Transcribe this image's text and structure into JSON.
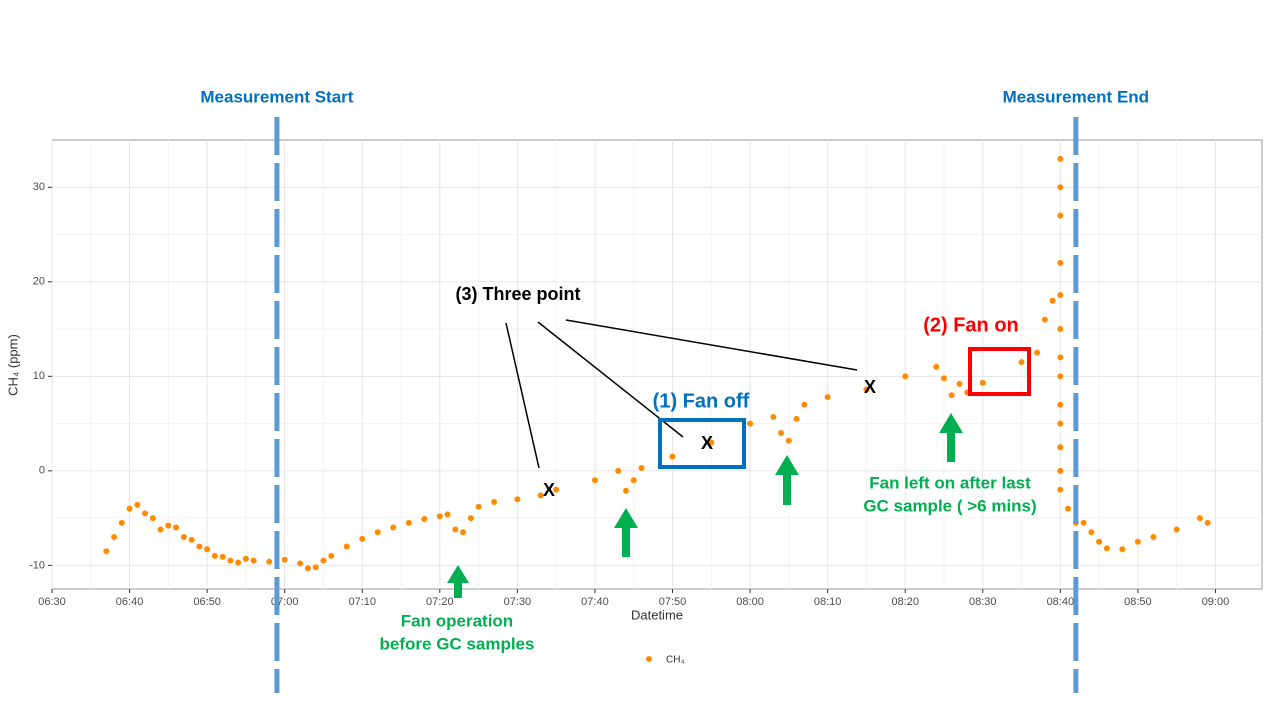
{
  "chart_data": {
    "type": "scatter",
    "x_label": "Datetime",
    "y_label": "CH₄ (ppm)",
    "xlim": [
      "06:30",
      "09:06"
    ],
    "xticks": [
      "06:30",
      "06:40",
      "06:50",
      "07:00",
      "07:10",
      "07:20",
      "07:30",
      "07:40",
      "07:50",
      "08:00",
      "08:10",
      "08:20",
      "08:30",
      "08:40",
      "08:50",
      "09:00"
    ],
    "ylim": [
      -12.5,
      35
    ],
    "yticks": [
      -10,
      0,
      10,
      20,
      30
    ],
    "grid": true,
    "legend": "bottom",
    "series": [
      {
        "name": "CH₄",
        "color": "#ff8c00",
        "x": [
          "06:37",
          "06:38",
          "06:39",
          "06:40",
          "06:41",
          "06:42",
          "06:43",
          "06:44",
          "06:45",
          "06:46",
          "06:47",
          "06:48",
          "06:49",
          "06:50",
          "06:51",
          "06:52",
          "06:53",
          "06:54",
          "06:55",
          "06:56",
          "06:58",
          "07:00",
          "07:02",
          "07:03",
          "07:04",
          "07:05",
          "07:06",
          "07:08",
          "07:10",
          "07:12",
          "07:14",
          "07:16",
          "07:18",
          "07:20",
          "07:21",
          "07:22",
          "07:23",
          "07:24",
          "07:25",
          "07:27",
          "07:30",
          "07:33",
          "07:35",
          "07:40",
          "07:43",
          "07:44",
          "07:45",
          "07:46",
          "07:50",
          "07:55",
          "08:00",
          "08:03",
          "08:04",
          "08:05",
          "08:06",
          "08:07",
          "08:10",
          "08:15",
          "08:20",
          "08:24",
          "08:25",
          "08:26",
          "08:27",
          "08:28",
          "08:30",
          "08:35",
          "08:37",
          "08:38",
          "08:39",
          "08:40",
          "08:40",
          "08:40",
          "08:40",
          "08:40",
          "08:40",
          "08:40",
          "08:40",
          "08:40",
          "08:40",
          "08:40",
          "08:40",
          "08:40",
          "08:41",
          "08:42",
          "08:43",
          "08:44",
          "08:45",
          "08:46",
          "08:48",
          "08:50",
          "08:52",
          "08:55",
          "08:58",
          "08:59"
        ],
        "values": [
          -8.5,
          -7,
          -5.5,
          -4,
          -3.6,
          -4.5,
          -5,
          -6.2,
          -5.8,
          -6,
          -7,
          -7.3,
          -8,
          -8.3,
          -9,
          -9.1,
          -9.5,
          -9.7,
          -9.3,
          -9.5,
          -9.6,
          -9.4,
          -9.8,
          -10.3,
          -10.2,
          -9.5,
          -9,
          -8,
          -7.2,
          -6.5,
          -6,
          -5.5,
          -5.1,
          -4.8,
          -4.6,
          -6.2,
          -6.5,
          -5,
          -3.8,
          -3.3,
          -3,
          -2.6,
          -2,
          -1,
          0,
          -2.1,
          -1,
          0.3,
          1.5,
          3,
          5,
          5.7,
          4,
          3.2,
          5.5,
          7,
          7.8,
          8.6,
          10,
          11,
          9.8,
          8,
          9.2,
          8.3,
          9.3,
          11.5,
          12.5,
          16,
          18,
          18.6,
          33,
          30,
          27,
          22,
          15,
          12,
          10,
          7,
          5,
          2.5,
          0,
          -2,
          -4,
          -5.5,
          -5.5,
          -6.5,
          -7.5,
          -8.2,
          -8.3,
          -7.5,
          -7,
          -6.2,
          -5,
          -5.5
        ]
      }
    ],
    "markers": [
      {
        "label": "Measurement Start",
        "x": "06:59"
      },
      {
        "label": "Measurement End",
        "x": "08:42"
      }
    ],
    "annotations": {
      "three_point": "(3) Three point",
      "x_mark": "X",
      "fan_off": "(1) Fan off",
      "fan_on": "(2) Fan on",
      "fan_operation": [
        "Fan operation",
        "before GC samples"
      ],
      "fan_left_on": [
        "Fan left on after last",
        "GC sample ( >6 mins)"
      ]
    }
  }
}
